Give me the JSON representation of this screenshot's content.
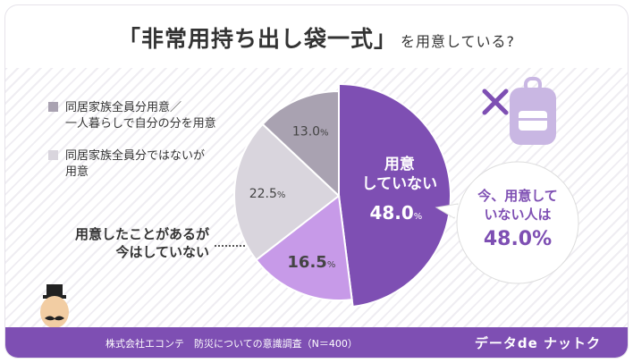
{
  "title": {
    "main": "「非常用持ち出し袋一式」",
    "sub": "を用意している?"
  },
  "legend": [
    {
      "color": "#a9a2b1",
      "lines": [
        "同居家族全員分用意／",
        "一人暮らしで自分の分を用意"
      ]
    },
    {
      "color": "#d9d5dd",
      "lines": [
        "同居家族全員分ではないが",
        "用意"
      ]
    }
  ],
  "callout": {
    "lines": [
      "用意したことがあるが",
      "今はしていない"
    ]
  },
  "bubble": {
    "lines": [
      "今、用意して",
      "いない人は"
    ],
    "value": "48.0%"
  },
  "footer": {
    "source": "株式会社エコンテ　防災についての意識調査（N＝400）",
    "brand": "データde ナットク"
  },
  "chart_data": {
    "type": "pie",
    "start": "top",
    "direction": "clockwise",
    "slices": [
      {
        "label": "用意していない",
        "value": 48.0,
        "display": "48.0",
        "unit": "%",
        "color": "#7e4fb3"
      },
      {
        "label": "用意したことがあるが今はしていない",
        "value": 16.5,
        "display": "16.5",
        "unit": "%",
        "color": "#c79ae8"
      },
      {
        "label": "同居家族全員分ではないが用意",
        "value": 22.5,
        "display": "22.5",
        "unit": "%",
        "color": "#d9d5dd"
      },
      {
        "label": "同居家族全員分用意／一人暮らしで自分の分を用意",
        "value": 13.0,
        "display": "13.0",
        "unit": "%",
        "color": "#a9a2b1"
      }
    ],
    "main_slice_label": [
      "用意",
      "していない"
    ]
  }
}
